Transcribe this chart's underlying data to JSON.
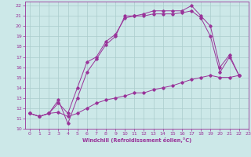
{
  "title": "",
  "xlabel": "Windchill (Refroidissement éolien,°C)",
  "bg_color": "#cce8e8",
  "line_color": "#993399",
  "grid_color": "#aacccc",
  "xlim": [
    -0.5,
    23
  ],
  "ylim": [
    10,
    22.4
  ],
  "xticks": [
    0,
    1,
    2,
    3,
    4,
    5,
    6,
    7,
    8,
    9,
    10,
    11,
    12,
    13,
    14,
    15,
    16,
    17,
    18,
    19,
    20,
    21,
    22,
    23
  ],
  "yticks": [
    10,
    11,
    12,
    13,
    14,
    15,
    16,
    17,
    18,
    19,
    20,
    21,
    22
  ],
  "line1_x": [
    0,
    1,
    2,
    3,
    4,
    5,
    6,
    7,
    8,
    9,
    10,
    11,
    12,
    13,
    14,
    15,
    16,
    17,
    18,
    19,
    20,
    21,
    22
  ],
  "line1_y": [
    11.5,
    11.2,
    11.5,
    11.6,
    11.2,
    11.5,
    12.0,
    12.5,
    12.8,
    13.0,
    13.2,
    13.5,
    13.5,
    13.8,
    14.0,
    14.2,
    14.5,
    14.8,
    15.0,
    15.2,
    15.0,
    15.0,
    15.2
  ],
  "line2_x": [
    0,
    1,
    2,
    3,
    4,
    5,
    6,
    7,
    8,
    9,
    10,
    11,
    12,
    13,
    14,
    15,
    16,
    17,
    18,
    19,
    20,
    21,
    22
  ],
  "line2_y": [
    11.5,
    11.2,
    11.5,
    12.5,
    11.5,
    14.0,
    16.5,
    17.0,
    18.5,
    19.2,
    20.8,
    21.0,
    21.0,
    21.2,
    21.2,
    21.2,
    21.3,
    21.5,
    20.8,
    19.0,
    15.5,
    17.0,
    15.2
  ],
  "line3_x": [
    0,
    1,
    2,
    3,
    4,
    5,
    6,
    7,
    8,
    9,
    10,
    11,
    12,
    13,
    14,
    15,
    16,
    17,
    18,
    19,
    20,
    21,
    22
  ],
  "line3_y": [
    11.5,
    11.2,
    11.5,
    12.8,
    10.5,
    13.0,
    15.5,
    16.8,
    18.2,
    19.0,
    21.0,
    21.0,
    21.2,
    21.5,
    21.5,
    21.5,
    21.5,
    22.0,
    21.0,
    20.0,
    16.0,
    17.2,
    15.2
  ]
}
